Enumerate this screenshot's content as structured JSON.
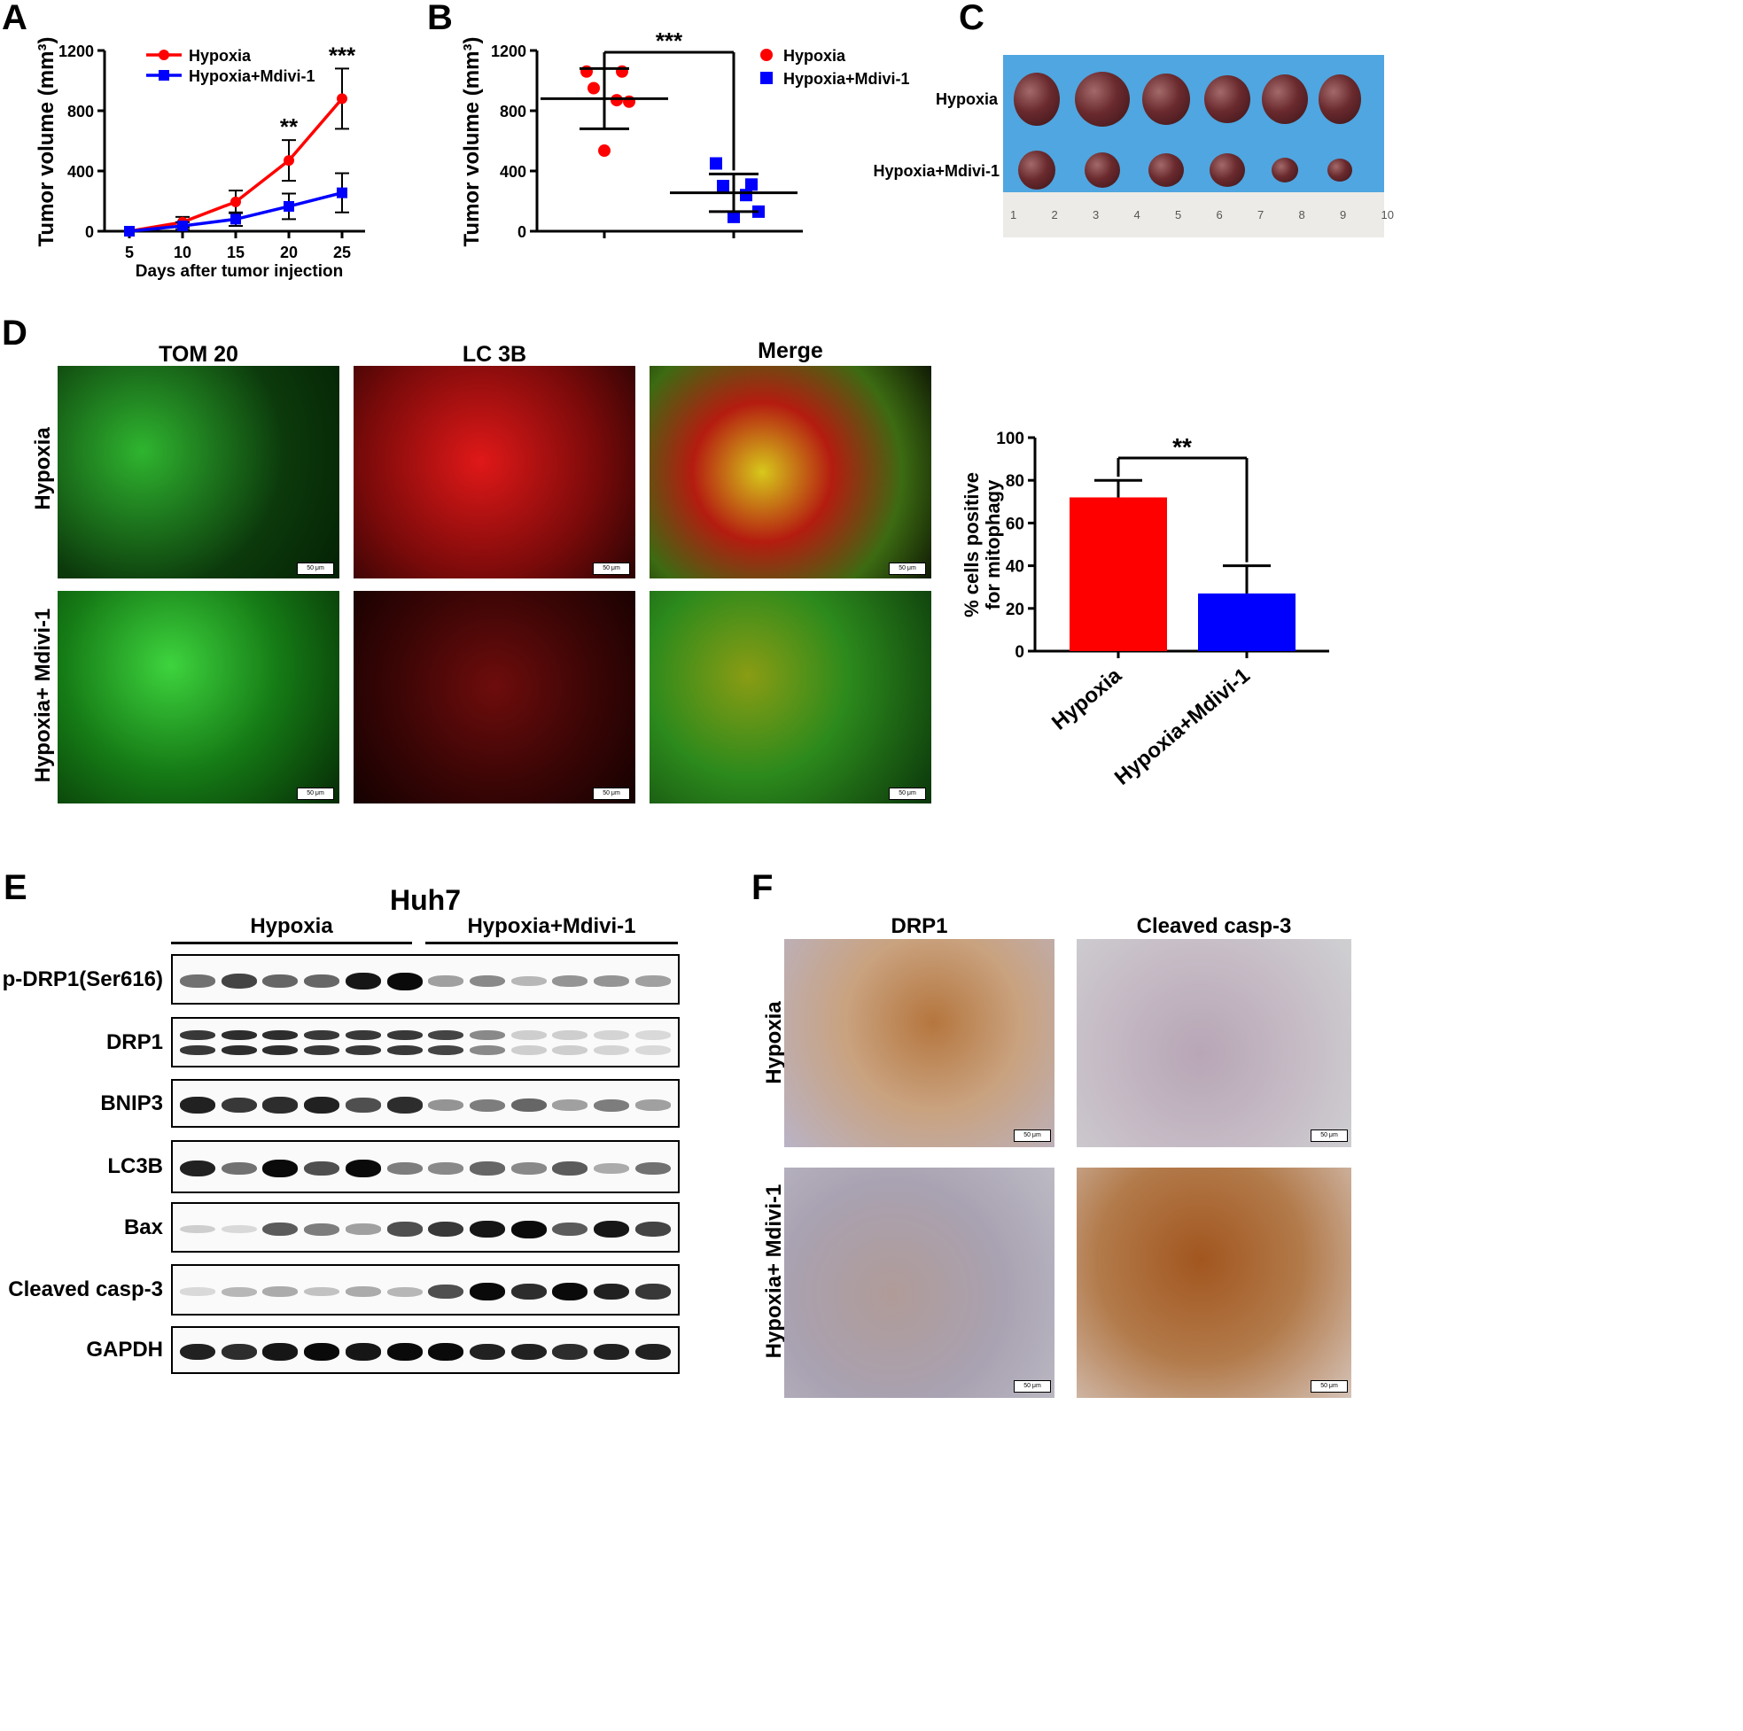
{
  "panels": {
    "a": "A",
    "b": "B",
    "c": "C",
    "d": "D",
    "e": "E",
    "f": "F"
  },
  "colors": {
    "hypoxia": "#ff0000",
    "mdivi": "#0000ff",
    "ruler_bg": "#4fa6e0"
  },
  "chart_data": [
    {
      "id": "A",
      "type": "line",
      "x": [
        5,
        10,
        15,
        20,
        25
      ],
      "xlabel": "Days after tumor injection",
      "ylabel": "Tumor volume (mm³)",
      "ylim": [
        0,
        1200
      ],
      "yticks": [
        0,
        400,
        800,
        1200
      ],
      "legend": "top-left",
      "series": [
        {
          "name": "Hypoxia",
          "values": [
            0,
            60,
            195,
            470,
            880
          ],
          "errors": [
            0,
            35,
            75,
            135,
            200
          ],
          "color": "#ff0000",
          "marker": "circle"
        },
        {
          "name": "Hypoxia+Mdivi-1",
          "values": [
            0,
            35,
            80,
            165,
            255
          ],
          "errors": [
            0,
            25,
            45,
            85,
            130
          ],
          "color": "#0000ff",
          "marker": "square"
        }
      ],
      "annotations": [
        {
          "x": 20,
          "text": "**"
        },
        {
          "x": 25,
          "text": "***"
        }
      ]
    },
    {
      "id": "B",
      "type": "scatter",
      "categories": [
        "Hypoxia",
        "Hypoxia+Mdivi-1"
      ],
      "ylabel": "Tumor volume (mm³)",
      "ylim": [
        0,
        1200
      ],
      "yticks": [
        0,
        400,
        800,
        1200
      ],
      "legend": "top-right",
      "series": [
        {
          "name": "Hypoxia",
          "points": [
            1060,
            1060,
            950,
            870,
            860,
            535
          ],
          "mean": 880,
          "sd": 200,
          "color": "#ff0000",
          "marker": "circle"
        },
        {
          "name": "Hypoxia+Mdivi-1",
          "points": [
            450,
            310,
            300,
            240,
            130,
            95
          ],
          "mean": 255,
          "sd": 125,
          "color": "#0000ff",
          "marker": "square"
        }
      ],
      "significance": "***"
    },
    {
      "id": "D",
      "type": "bar",
      "categories": [
        "Hypoxia",
        "Hypoxia+Mdivi-1"
      ],
      "values": [
        72,
        27
      ],
      "errors": [
        8,
        13
      ],
      "colors": [
        "#ff0000",
        "#0000ff"
      ],
      "ylabel": "% cells positive for mitophagy",
      "ylim": [
        0,
        100
      ],
      "yticks": [
        0,
        20,
        40,
        60,
        80,
        100
      ],
      "significance": "**"
    }
  ],
  "panel_c": {
    "row_labels": [
      "Hypoxia",
      "Hypoxia+Mdivi-1"
    ],
    "ruler_numbers": [
      "1",
      "2",
      "3",
      "4",
      "5",
      "6",
      "7",
      "8",
      "9",
      "10"
    ]
  },
  "panel_d": {
    "columns": [
      "TOM 20",
      "LC 3B",
      "Merge"
    ],
    "rows": [
      "Hypoxia",
      "Hypoxia+ Mdivi-1"
    ],
    "scale_bar": "50 μm"
  },
  "panel_e": {
    "cell_line": "Huh7",
    "groups": [
      "Hypoxia",
      "Hypoxia+Mdivi-1"
    ],
    "bands": [
      {
        "label": "p-DRP1(Ser616)",
        "intensity": [
          0.55,
          0.75,
          0.6,
          0.6,
          0.95,
          1.0,
          0.35,
          0.45,
          0.25,
          0.4,
          0.4,
          0.35
        ]
      },
      {
        "label": "DRP1",
        "intensity": [
          0.8,
          0.85,
          0.85,
          0.8,
          0.8,
          0.8,
          0.75,
          0.45,
          0.15,
          0.15,
          0.12,
          0.1
        ]
      },
      {
        "label": "BNIP3",
        "intensity": [
          0.9,
          0.8,
          0.85,
          0.9,
          0.7,
          0.85,
          0.4,
          0.5,
          0.6,
          0.35,
          0.5,
          0.35
        ]
      },
      {
        "label": "LC3B",
        "intensity": [
          0.9,
          0.55,
          1.0,
          0.7,
          1.0,
          0.5,
          0.45,
          0.6,
          0.45,
          0.65,
          0.3,
          0.55
        ]
      },
      {
        "label": "Bax",
        "intensity": [
          0.15,
          0.1,
          0.65,
          0.5,
          0.35,
          0.7,
          0.8,
          0.95,
          1.0,
          0.65,
          0.95,
          0.75
        ]
      },
      {
        "label": "Cleaved casp-3",
        "intensity": [
          0.1,
          0.25,
          0.3,
          0.2,
          0.3,
          0.25,
          0.7,
          1.0,
          0.85,
          1.0,
          0.9,
          0.8
        ]
      },
      {
        "label": "GAPDH",
        "intensity": [
          0.9,
          0.85,
          0.95,
          1.0,
          0.95,
          1.0,
          1.0,
          0.9,
          0.9,
          0.85,
          0.9,
          0.9
        ]
      }
    ]
  },
  "panel_f": {
    "columns": [
      "DRP1",
      "Cleaved casp-3"
    ],
    "rows": [
      "Hypoxia",
      "Hypoxia+ Mdivi-1"
    ],
    "scale_bar": "50 μm"
  }
}
